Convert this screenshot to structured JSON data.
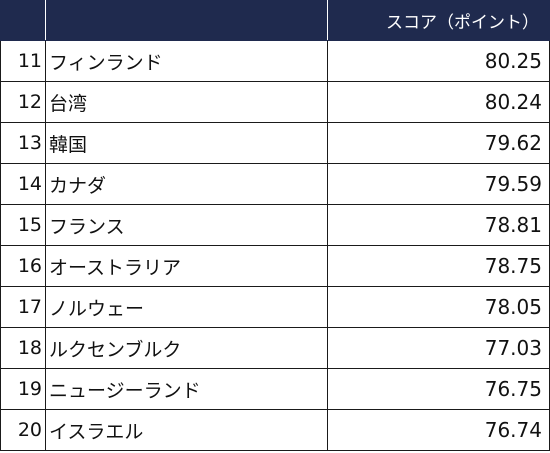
{
  "table": {
    "headers": [
      "",
      "",
      "スコア（ポイント）"
    ],
    "rows": [
      {
        "rank": "11",
        "country": "フィンランド",
        "score": "80.25"
      },
      {
        "rank": "12",
        "country": "台湾",
        "score": "80.24"
      },
      {
        "rank": "13",
        "country": "韓国",
        "score": "79.62"
      },
      {
        "rank": "14",
        "country": "カナダ",
        "score": "79.59"
      },
      {
        "rank": "15",
        "country": "フランス",
        "score": "78.81"
      },
      {
        "rank": "16",
        "country": "オーストラリア",
        "score": "78.75"
      },
      {
        "rank": "17",
        "country": "ノルウェー",
        "score": "78.05"
      },
      {
        "rank": "18",
        "country": "ルクセンブルク",
        "score": "77.03"
      },
      {
        "rank": "19",
        "country": "ニュージーランド",
        "score": "76.75"
      },
      {
        "rank": "20",
        "country": "イスラエル",
        "score": "76.74"
      }
    ]
  },
  "colors": {
    "header_background": "#1f2a4e",
    "header_text": "#ffffff",
    "border": "#1a1a1a"
  }
}
